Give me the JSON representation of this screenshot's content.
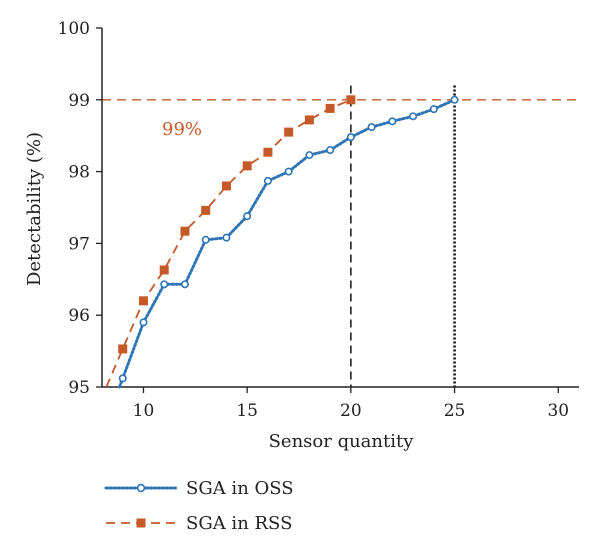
{
  "chart_data": {
    "type": "line",
    "xlabel": "Sensor quantity",
    "ylabel": "Detectability (%)",
    "xlim": [
      8,
      31
    ],
    "ylim": [
      95,
      100
    ],
    "xticks": [
      10,
      15,
      20,
      25,
      30
    ],
    "yticks": [
      95,
      96,
      97,
      98,
      99,
      100
    ],
    "grid": false,
    "legend_position": "bottom-left",
    "series": [
      {
        "name": "SGA in OSS",
        "color": "#2e75b6",
        "line_style": "dotted",
        "marker": "circle",
        "x": [
          9,
          10,
          11,
          12,
          13,
          14,
          15,
          16,
          17,
          18,
          19,
          20,
          21,
          22,
          23,
          24,
          25
        ],
        "y": [
          95.12,
          95.9,
          96.43,
          96.43,
          97.05,
          97.08,
          97.38,
          97.87,
          98.0,
          98.23,
          98.3,
          98.48,
          98.62,
          98.7,
          98.77,
          98.87,
          99.0
        ]
      },
      {
        "name": "SGA in RSS",
        "color": "#c55a28",
        "line_style": "dashed",
        "marker": "square",
        "x": [
          9,
          10,
          11,
          12,
          13,
          14,
          15,
          16,
          17,
          18,
          19,
          20
        ],
        "y": [
          95.53,
          96.2,
          96.63,
          97.17,
          97.46,
          97.8,
          98.08,
          98.27,
          98.55,
          98.72,
          98.88,
          99.0
        ]
      }
    ],
    "reference_lines": [
      {
        "axis": "y",
        "value": 99,
        "style": "dashed",
        "color": "#c55a28"
      },
      {
        "axis": "x",
        "value": 20,
        "style": "dashed",
        "color": "#222222"
      },
      {
        "axis": "x",
        "value": 25,
        "style": "dotted",
        "color": "#111111"
      }
    ],
    "annotations": [
      {
        "text": "99%",
        "color": "#c55a28"
      }
    ]
  }
}
